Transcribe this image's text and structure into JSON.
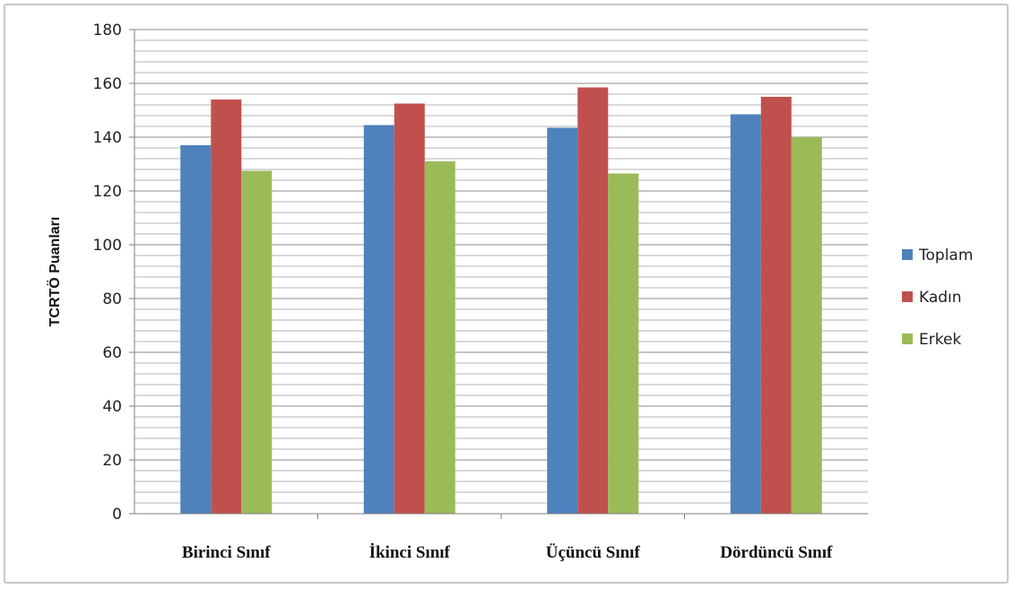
{
  "chart_data": {
    "type": "bar",
    "title": "",
    "xlabel": "",
    "ylabel": "TCRTÖ Puanları",
    "categories": [
      "Birinci Sınıf",
      "İkinci Sınıf",
      "Üçüncü Sınıf",
      "Dördüncü Sınıf"
    ],
    "series": [
      {
        "name": "Toplam",
        "color": "#4f81bd",
        "values": [
          137,
          144.5,
          143.5,
          148.5
        ]
      },
      {
        "name": "Kadın",
        "color": "#c0504d",
        "values": [
          154,
          152.5,
          158.5,
          155
        ]
      },
      {
        "name": "Erkek",
        "color": "#9bbb59",
        "values": [
          127.5,
          131,
          126.5,
          140
        ]
      }
    ],
    "ylim": [
      0,
      180
    ],
    "yticks": [
      0,
      20,
      40,
      60,
      80,
      100,
      120,
      140,
      160,
      180
    ],
    "minor_grid_step": 4,
    "grid": true,
    "legend_position": "right"
  }
}
